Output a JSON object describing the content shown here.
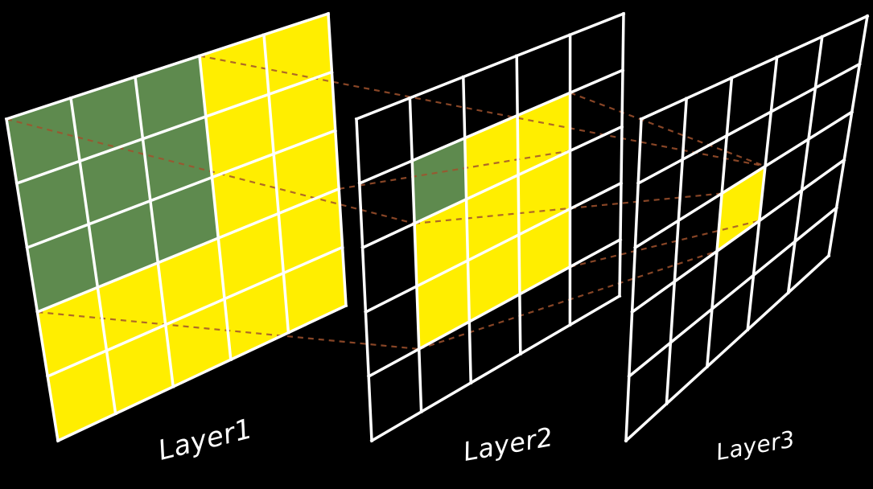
{
  "colors": {
    "background": "#000000",
    "grid_line": "#ffffff",
    "receptive_field": "#ffee00",
    "highlighted_cell": "#5e8a4e",
    "connector": "#a0522d"
  },
  "layers": [
    {
      "label": "Layer1",
      "grid_size": 5,
      "yellow_cells": [
        [
          0,
          3
        ],
        [
          0,
          4
        ],
        [
          1,
          3
        ],
        [
          1,
          4
        ],
        [
          2,
          3
        ],
        [
          2,
          4
        ],
        [
          3,
          0
        ],
        [
          3,
          1
        ],
        [
          3,
          2
        ],
        [
          3,
          3
        ],
        [
          3,
          4
        ],
        [
          4,
          0
        ],
        [
          4,
          1
        ],
        [
          4,
          2
        ],
        [
          4,
          3
        ],
        [
          4,
          4
        ]
      ],
      "green_cells": [
        [
          0,
          0
        ],
        [
          0,
          1
        ],
        [
          0,
          2
        ],
        [
          1,
          0
        ],
        [
          1,
          1
        ],
        [
          1,
          2
        ],
        [
          2,
          0
        ],
        [
          2,
          1
        ],
        [
          2,
          2
        ]
      ]
    },
    {
      "label": "Layer2",
      "grid_size": 5,
      "yellow_cells": [
        [
          1,
          2
        ],
        [
          1,
          3
        ],
        [
          2,
          1
        ],
        [
          2,
          2
        ],
        [
          2,
          3
        ],
        [
          3,
          1
        ],
        [
          3,
          2
        ],
        [
          3,
          3
        ]
      ],
      "green_cells": [
        [
          1,
          1
        ]
      ]
    },
    {
      "label": "Layer3",
      "grid_size": 5,
      "yellow_cells": [
        [
          2,
          2
        ]
      ],
      "green_cells": []
    }
  ]
}
